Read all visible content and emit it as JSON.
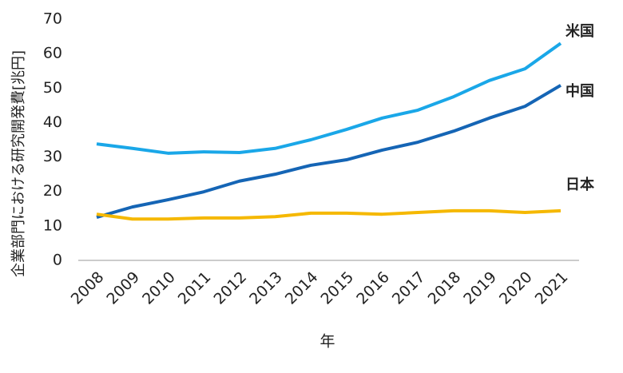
{
  "chart_data": {
    "type": "line",
    "x_label": "年",
    "y_label": "企業部門における研究開発費[兆円]",
    "categories": [
      "2008",
      "2009",
      "2010",
      "2011",
      "2012",
      "2013",
      "2014",
      "2015",
      "2016",
      "2017",
      "2018",
      "2019",
      "2020",
      "2021"
    ],
    "ylim": [
      0,
      70
    ],
    "yticks": [
      0,
      10,
      20,
      30,
      40,
      50,
      60,
      70
    ],
    "grid": false,
    "series": [
      {
        "name": "米国",
        "color": "#1aa7e8",
        "values": [
          33.8,
          32.5,
          31.1,
          31.5,
          31.3,
          32.5,
          35,
          38,
          41.3,
          43.6,
          47.5,
          52.2,
          55.6,
          63
        ]
      },
      {
        "name": "中国",
        "color": "#1565b5",
        "values": [
          12.5,
          15.5,
          17.6,
          19.9,
          23,
          25,
          27.6,
          29.2,
          32,
          34.3,
          37.5,
          41.3,
          44.7,
          50.8
        ]
      },
      {
        "name": "日本",
        "color": "#f5b800",
        "values": [
          13.4,
          12,
          12,
          12.3,
          12.3,
          12.7,
          13.7,
          13.7,
          13.4,
          13.9,
          14.4,
          14.4,
          13.9,
          14.4
        ]
      }
    ]
  }
}
